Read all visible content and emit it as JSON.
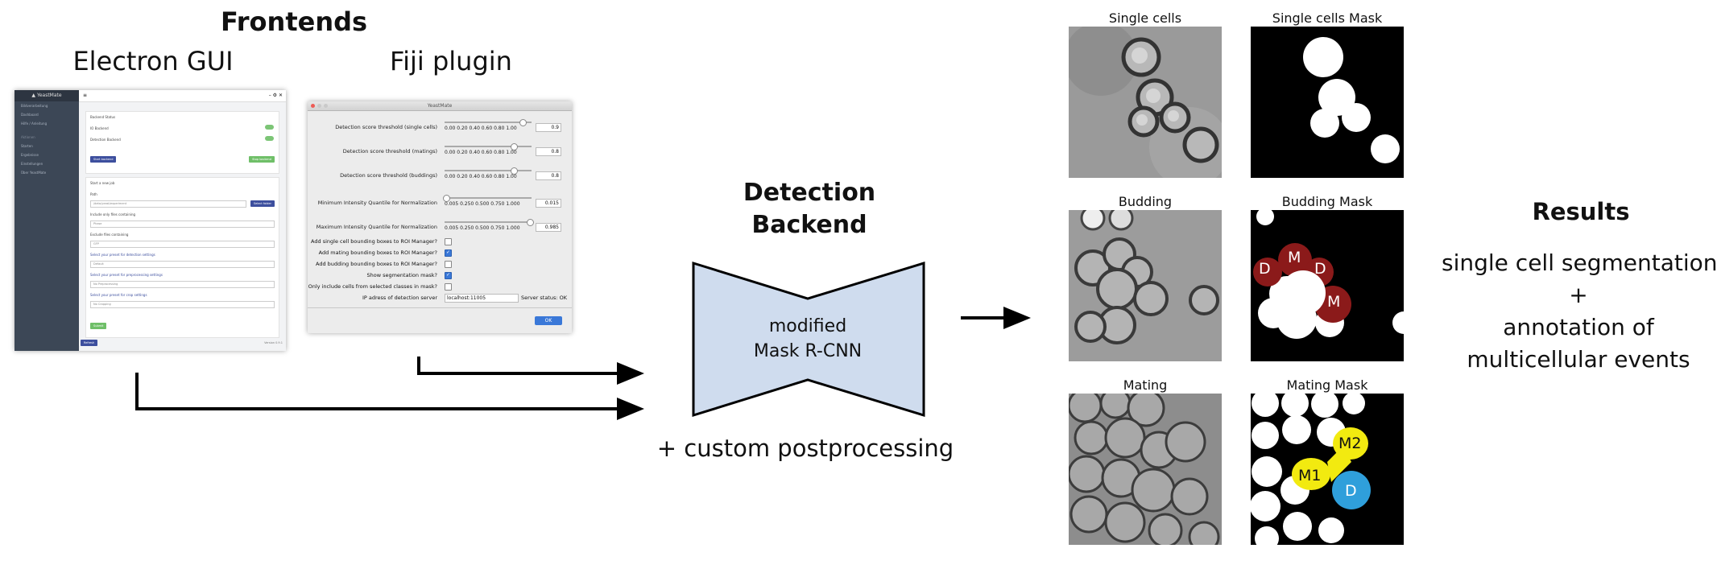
{
  "frontends": {
    "title": "Frontends",
    "electron_label": "Electron GUI",
    "fiji_label": "Fiji plugin"
  },
  "electron_gui": {
    "app_name": "YeastMate",
    "menu": [
      "Bildverarbeitung",
      "Dashboard",
      "Hilfe / Anleitung"
    ],
    "section": "Aktionen",
    "submenu": [
      "Starten",
      "Ergebnisse",
      "Einstellungen",
      "Über YeastMate"
    ],
    "card1_title": "Backend Status",
    "io_backend": "IO Backend",
    "detection_backend": "Detection Backend",
    "start_button": "Start backend",
    "stop_button": "Stop backend",
    "card2_title": "Start a new job",
    "path_label": "Path",
    "path_placeholder": "/data/yeast/experiment",
    "select_button": "Select folder",
    "include_label": "Include only files containing",
    "include_value": "Phase",
    "exclude_label": "Exclude files containing",
    "exclude_value": "GFP",
    "det_settings": "Select your preset for detection settings",
    "det_value": "Default",
    "pre_settings": "Select your preset for preprocessing settings",
    "pre_value": "No Preprocessing",
    "crop_settings": "Select your preset for crop settings",
    "crop_value": "No Cropping",
    "submit": "Submit",
    "refresh": "Refresh",
    "version": "Version 0.9.1"
  },
  "fiji_plugin": {
    "window_title": "YeastMate",
    "sliders": [
      {
        "label": "Detection score threshold (single cells)",
        "ticks": "0.00  0.20  0.40  0.60  0.80  1.00",
        "value": "0.9",
        "pos": 0.9
      },
      {
        "label": "Detection score threshold (matings)",
        "ticks": "0.00  0.20  0.40  0.60  0.80  1.00",
        "value": "0.8",
        "pos": 0.8
      },
      {
        "label": "Detection score threshold (buddings)",
        "ticks": "0.00  0.20  0.40  0.60  0.80  1.00",
        "value": "0.8",
        "pos": 0.8
      },
      {
        "label": "Minimum Intensity Quantile for Normalization",
        "ticks": "0.005 0.250 0.500 0.750 1.000",
        "value": "0.015",
        "pos": 0.015
      },
      {
        "label": "Maximum Intensity Quantile for Normalization",
        "ticks": "0.005 0.250 0.500 0.750 1.000",
        "value": "0.985",
        "pos": 0.985
      }
    ],
    "checkboxes": [
      {
        "label": "Add single cell bounding boxes to ROI Manager?",
        "checked": false
      },
      {
        "label": "Add mating bounding boxes to ROI Manager?",
        "checked": true
      },
      {
        "label": "Add budding bounding boxes to ROI Manager?",
        "checked": false
      },
      {
        "label": "Show segmentation mask?",
        "checked": true
      },
      {
        "label": "Only include cells from selected classes in mask?",
        "checked": false
      }
    ],
    "ip_label": "IP adress of detection server",
    "ip_value": "localhost:11005",
    "status": "Server status: OK",
    "ok_label": "OK"
  },
  "backend": {
    "title_line1": "Detection",
    "title_line2": "Backend",
    "model_line1": "modified",
    "model_line2": "Mask R-CNN",
    "postprocessing": "+ custom postprocessing"
  },
  "panels": {
    "single": "Single cells",
    "single_mask": "Single cells Mask",
    "budding": "Budding",
    "budding_mask": "Budding Mask",
    "mating": "Mating",
    "mating_mask": "Mating Mask",
    "labels": {
      "M": "M",
      "D": "D",
      "M1": "M1",
      "M2": "M2"
    }
  },
  "results": {
    "title": "Results",
    "line1": "single cell segmentation",
    "line2": "+",
    "line3": "annotation of",
    "line4": "multicellular events"
  },
  "colors": {
    "mother_red": "#8b1a1a",
    "mating_yellow": "#f2ea10",
    "daughter_blue": "#2f9fdb",
    "backend_fill": "#cfdcee"
  }
}
